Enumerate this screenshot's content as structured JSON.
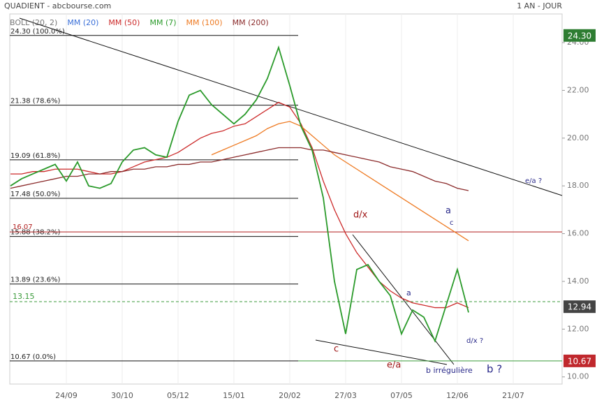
{
  "header": {
    "title": "QUADIENT - abcbourse.com",
    "period": "1 AN - JOUR"
  },
  "chart_data": {
    "type": "line",
    "legend": [
      {
        "name": "BOLL (20, 2)",
        "color": "#777777"
      },
      {
        "name": "MM (20)",
        "color": "#3a6fd8"
      },
      {
        "name": "MM (50)",
        "color": "#cc2a2a"
      },
      {
        "name": "MM (7)",
        "color": "#2a9a2a"
      },
      {
        "name": "MM (100)",
        "color": "#ee7a22"
      },
      {
        "name": "MM (200)",
        "color": "#8b2b2b"
      }
    ],
    "categories": [
      null,
      null,
      null,
      null,
      null,
      "24/09",
      null,
      null,
      null,
      null,
      "30/10",
      null,
      null,
      null,
      null,
      "05/12",
      null,
      null,
      null,
      null,
      "15/01",
      null,
      null,
      null,
      null,
      "20/02",
      null,
      null,
      null,
      null,
      "27/03",
      null,
      null,
      null,
      null,
      "07/05",
      null,
      null,
      null,
      null,
      "12/06",
      null,
      null,
      null,
      null,
      "21/07",
      null,
      null,
      null,
      null
    ],
    "values": [
      18.0,
      18.3,
      18.5,
      18.7,
      18.9,
      18.2,
      19.0,
      18.0,
      17.9,
      18.1,
      19.0,
      19.5,
      19.6,
      19.3,
      19.2,
      20.7,
      21.8,
      22.0,
      21.4,
      21.0,
      20.6,
      21.0,
      21.6,
      22.5,
      23.8,
      22.2,
      20.5,
      19.5,
      17.5,
      14.0,
      11.8,
      14.5,
      14.7,
      14.0,
      13.4,
      11.8,
      12.8,
      12.5,
      11.5,
      13.0,
      14.5,
      12.7,
      null,
      null,
      null,
      null,
      null,
      null,
      null,
      null
    ],
    "color": "#2a9a2a",
    "series": [
      {
        "name": "MM (50)",
        "color": "#cc2a2a",
        "values": [
          18.5,
          18.5,
          18.6,
          18.6,
          18.7,
          18.7,
          18.7,
          18.6,
          18.5,
          18.5,
          18.6,
          18.8,
          19.0,
          19.1,
          19.2,
          19.4,
          19.7,
          20.0,
          20.2,
          20.3,
          20.5,
          20.6,
          20.9,
          21.2,
          21.5,
          21.3,
          20.6,
          19.6,
          18.2,
          17.0,
          16.0,
          15.2,
          14.6,
          14.0,
          13.6,
          13.3,
          13.1,
          13.0,
          12.9,
          12.9,
          13.1,
          12.9,
          null,
          null,
          null,
          null,
          null,
          null,
          null,
          null
        ]
      },
      {
        "name": "MM (100)",
        "color": "#ee7a22",
        "values": [
          null,
          null,
          null,
          null,
          null,
          null,
          null,
          null,
          null,
          null,
          null,
          null,
          null,
          null,
          null,
          null,
          null,
          null,
          19.3,
          19.5,
          19.7,
          19.9,
          20.1,
          20.4,
          20.6,
          20.7,
          20.5,
          20.1,
          19.7,
          19.3,
          19.0,
          18.7,
          18.4,
          18.1,
          17.8,
          17.5,
          17.2,
          16.9,
          16.6,
          16.3,
          16.0,
          15.7,
          null,
          null,
          null,
          null,
          null,
          null,
          null,
          null
        ]
      },
      {
        "name": "MM (200)",
        "color": "#8b2b2b",
        "values": [
          17.9,
          18.0,
          18.1,
          18.2,
          18.3,
          18.4,
          18.4,
          18.5,
          18.5,
          18.6,
          18.6,
          18.7,
          18.7,
          18.8,
          18.8,
          18.9,
          18.9,
          19.0,
          19.0,
          19.1,
          19.2,
          19.3,
          19.4,
          19.5,
          19.6,
          19.6,
          19.6,
          19.5,
          19.5,
          19.4,
          19.3,
          19.2,
          19.1,
          19.0,
          18.8,
          18.7,
          18.6,
          18.4,
          18.2,
          18.1,
          17.9,
          17.8,
          null,
          null,
          null,
          null,
          null,
          null,
          null,
          null
        ]
      }
    ],
    "ylim": [
      9.7,
      25.2
    ],
    "yticks": [
      {
        "value": 10,
        "label": "10.00"
      },
      {
        "value": 12,
        "label": "12.00"
      },
      {
        "value": 14,
        "label": "14.00"
      },
      {
        "value": 16,
        "label": "16.00"
      },
      {
        "value": 18,
        "label": "18.00"
      },
      {
        "value": 20,
        "label": "20.00"
      },
      {
        "value": 22,
        "label": "22.00"
      },
      {
        "value": 24,
        "label": "24.00"
      }
    ],
    "fib_levels": [
      {
        "value": 24.3,
        "label": "24.30 (100.0%)"
      },
      {
        "value": 21.38,
        "label": "21.38 (78.6%)"
      },
      {
        "value": 19.09,
        "label": "19.09 (61.8%)"
      },
      {
        "value": 17.48,
        "label": "17.48 (50.0%)"
      },
      {
        "value": 15.88,
        "label": "15.88 (38.2%)"
      },
      {
        "value": 13.89,
        "label": "13.89 (23.6%)"
      },
      {
        "value": 10.67,
        "label": "10.67 (0.0%)"
      }
    ],
    "resistance": {
      "value": 16.07,
      "label": "16.07"
    },
    "dashed_level": {
      "value": 13.15,
      "label": "13.15"
    },
    "price_tags": [
      {
        "value": 24.3,
        "label": "24.30",
        "color": "#2e7d32"
      },
      {
        "value": 12.94,
        "label": "12.94",
        "color": "#444444"
      },
      {
        "value": 10.67,
        "label": "10.67",
        "color": "#c0282d"
      }
    ],
    "annotations": [
      "d/x",
      "a",
      "c",
      "e/a ?",
      "a",
      "c",
      "e/a",
      "b irrégulière",
      "b ?",
      "d/x ?"
    ]
  }
}
